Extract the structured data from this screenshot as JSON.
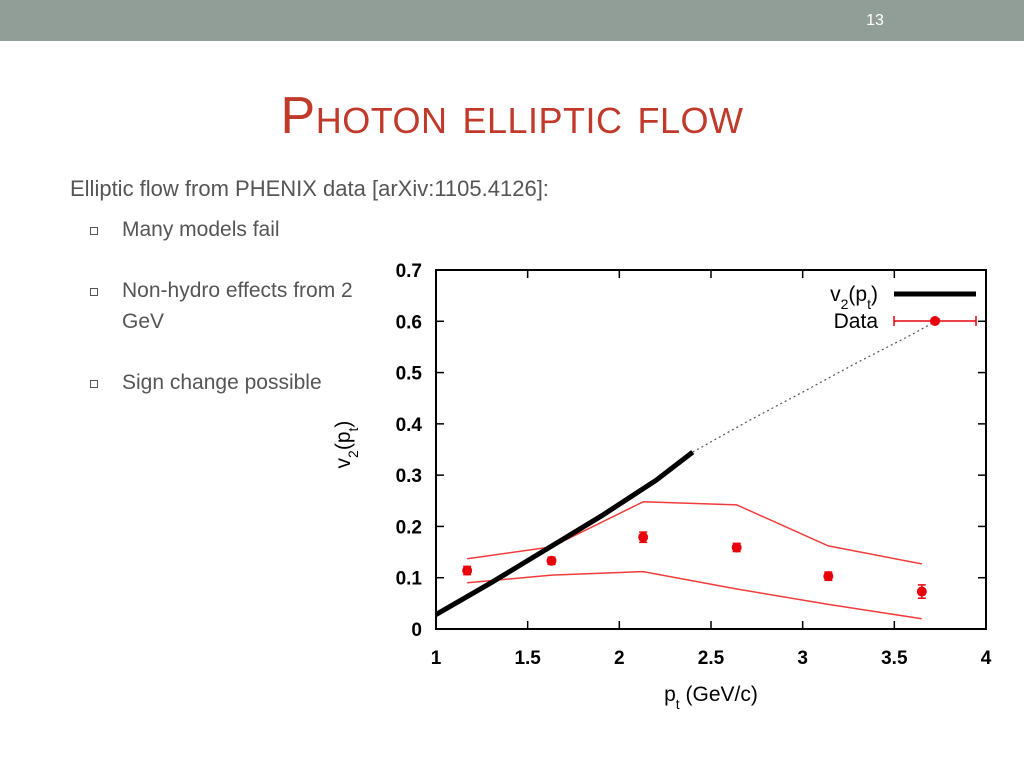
{
  "slide": {
    "number": "13",
    "title": "Photon elliptic flow",
    "intro": "Elliptic flow from PHENIX data [arXiv:1105.4126]:",
    "bullets": [
      {
        "text": "Many models fail"
      },
      {
        "text": "Non-hydro effects from 2 GeV"
      },
      {
        "text": "Sign change possible"
      }
    ]
  },
  "chart_data": {
    "type": "line",
    "xlabel": "pt (GeV/c)",
    "ylabel": "v2(pt)",
    "xlim": [
      1,
      4
    ],
    "ylim": [
      0,
      0.7
    ],
    "xticks": [
      "1",
      "1.5",
      "2",
      "2.5",
      "3",
      "3.5",
      "4"
    ],
    "yticks": [
      "0",
      "0.1",
      "0.2",
      "0.3",
      "0.4",
      "0.5",
      "0.6",
      "0.7"
    ],
    "legend_position": "top-right",
    "legend": [
      {
        "label": "v2(pt)",
        "color": "#000000"
      },
      {
        "label": "Data",
        "color": "#e8000b"
      }
    ],
    "model_curve": {
      "name": "v2(pt)",
      "solid": {
        "x": [
          1.0,
          1.3,
          1.6,
          1.9,
          2.2,
          2.4
        ],
        "y": [
          0.028,
          0.09,
          0.155,
          0.22,
          0.29,
          0.345
        ]
      },
      "dotted": {
        "x": [
          2.4,
          2.7,
          3.0,
          3.3,
          3.6,
          3.75
        ],
        "y": [
          0.345,
          0.405,
          0.462,
          0.52,
          0.575,
          0.605
        ]
      }
    },
    "data_series": {
      "name": "Data",
      "x": [
        1.17,
        1.63,
        2.13,
        2.64,
        3.14,
        3.65
      ],
      "y": [
        0.114,
        0.133,
        0.179,
        0.159,
        0.103,
        0.073
      ],
      "yerr": [
        0.008,
        0.007,
        0.01,
        0.008,
        0.008,
        0.013
      ]
    },
    "band_upper": {
      "x": [
        1.17,
        1.63,
        2.13,
        2.64,
        3.14,
        3.65
      ],
      "y": [
        0.137,
        0.16,
        0.248,
        0.242,
        0.162,
        0.127
      ]
    },
    "band_lower": {
      "x": [
        1.17,
        1.63,
        2.13,
        2.64,
        3.14,
        3.65
      ],
      "y": [
        0.09,
        0.105,
        0.112,
        0.078,
        0.048,
        0.02
      ]
    },
    "colors": {
      "data": "#e8000b",
      "band": "#f03c3c",
      "model": "#000000"
    }
  }
}
